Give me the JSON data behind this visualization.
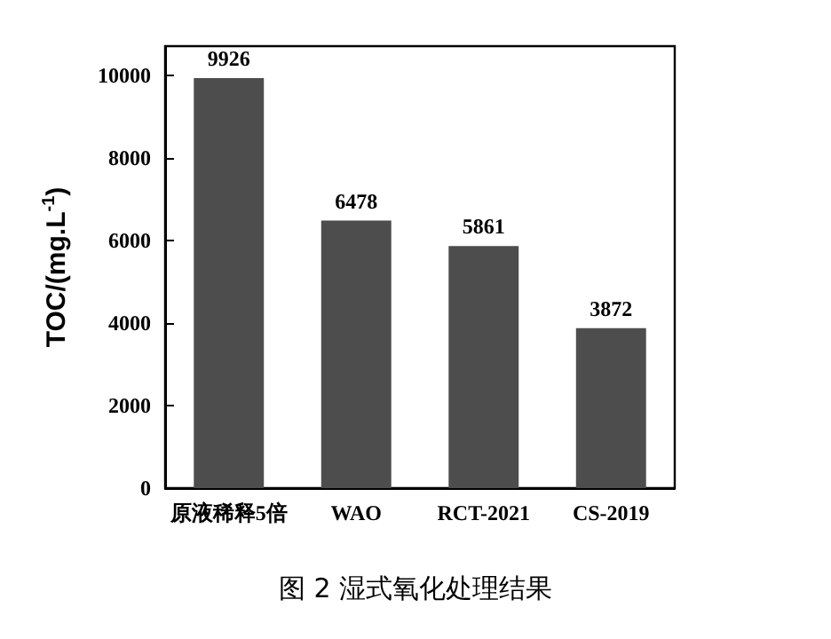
{
  "chart_data": {
    "type": "bar",
    "title": "图 2 湿式氧化处理结果",
    "categories": [
      "原液稀释5倍",
      "WAO",
      "RCT-2021",
      "CS-2019"
    ],
    "values": [
      9926,
      6478,
      5861,
      3872
    ],
    "color": "#4d4d4d",
    "ylabel": "TOC/(mg.L$^{-1}$)",
    "ylim": [
      0,
      10700
    ],
    "yticks": [
      0,
      2000,
      4000,
      6000,
      8000,
      10000
    ],
    "data_labels": true,
    "grid": false
  }
}
